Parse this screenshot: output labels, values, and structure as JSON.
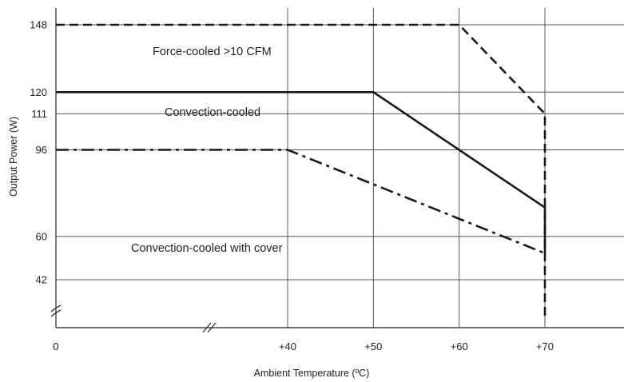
{
  "chart_data": {
    "type": "line",
    "xlabel": "Ambient Temperature (ºC)",
    "ylabel": "Output Power (W)",
    "x_ticks": [
      {
        "value": 0,
        "label": "0"
      },
      {
        "value": 40,
        "label": "+40"
      },
      {
        "value": 50,
        "label": "+50"
      },
      {
        "value": 60,
        "label": "+60"
      },
      {
        "value": 70,
        "label": "+70"
      }
    ],
    "y_ticks": [
      {
        "value": 42,
        "label": "42"
      },
      {
        "value": 60,
        "label": "60"
      },
      {
        "value": 96,
        "label": "96"
      },
      {
        "value": 111,
        "label": "111"
      },
      {
        "value": 120,
        "label": "120"
      },
      {
        "value": 148,
        "label": "148"
      }
    ],
    "axis_breaks": [
      "x",
      "y"
    ],
    "grid": true,
    "series": [
      {
        "name": "Force-cooled >10 CFM",
        "style": "dashed",
        "color": "#1a1a1a",
        "points": [
          {
            "x": 0,
            "y": 148
          },
          {
            "x": 60,
            "y": 148
          },
          {
            "x": 70,
            "y": 111
          },
          {
            "x": 70,
            "y": 25
          }
        ]
      },
      {
        "name": "Convection-cooled",
        "style": "solid",
        "color": "#1a1a1a",
        "points": [
          {
            "x": 0,
            "y": 120
          },
          {
            "x": 50,
            "y": 120
          },
          {
            "x": 70,
            "y": 72
          },
          {
            "x": 70,
            "y": 53
          }
        ]
      },
      {
        "name": "Convection-cooled with cover",
        "style": "dash-dot",
        "color": "#1a1a1a",
        "points": [
          {
            "x": 0,
            "y": 96
          },
          {
            "x": 40,
            "y": 96
          },
          {
            "x": 70,
            "y": 53
          }
        ]
      }
    ]
  }
}
